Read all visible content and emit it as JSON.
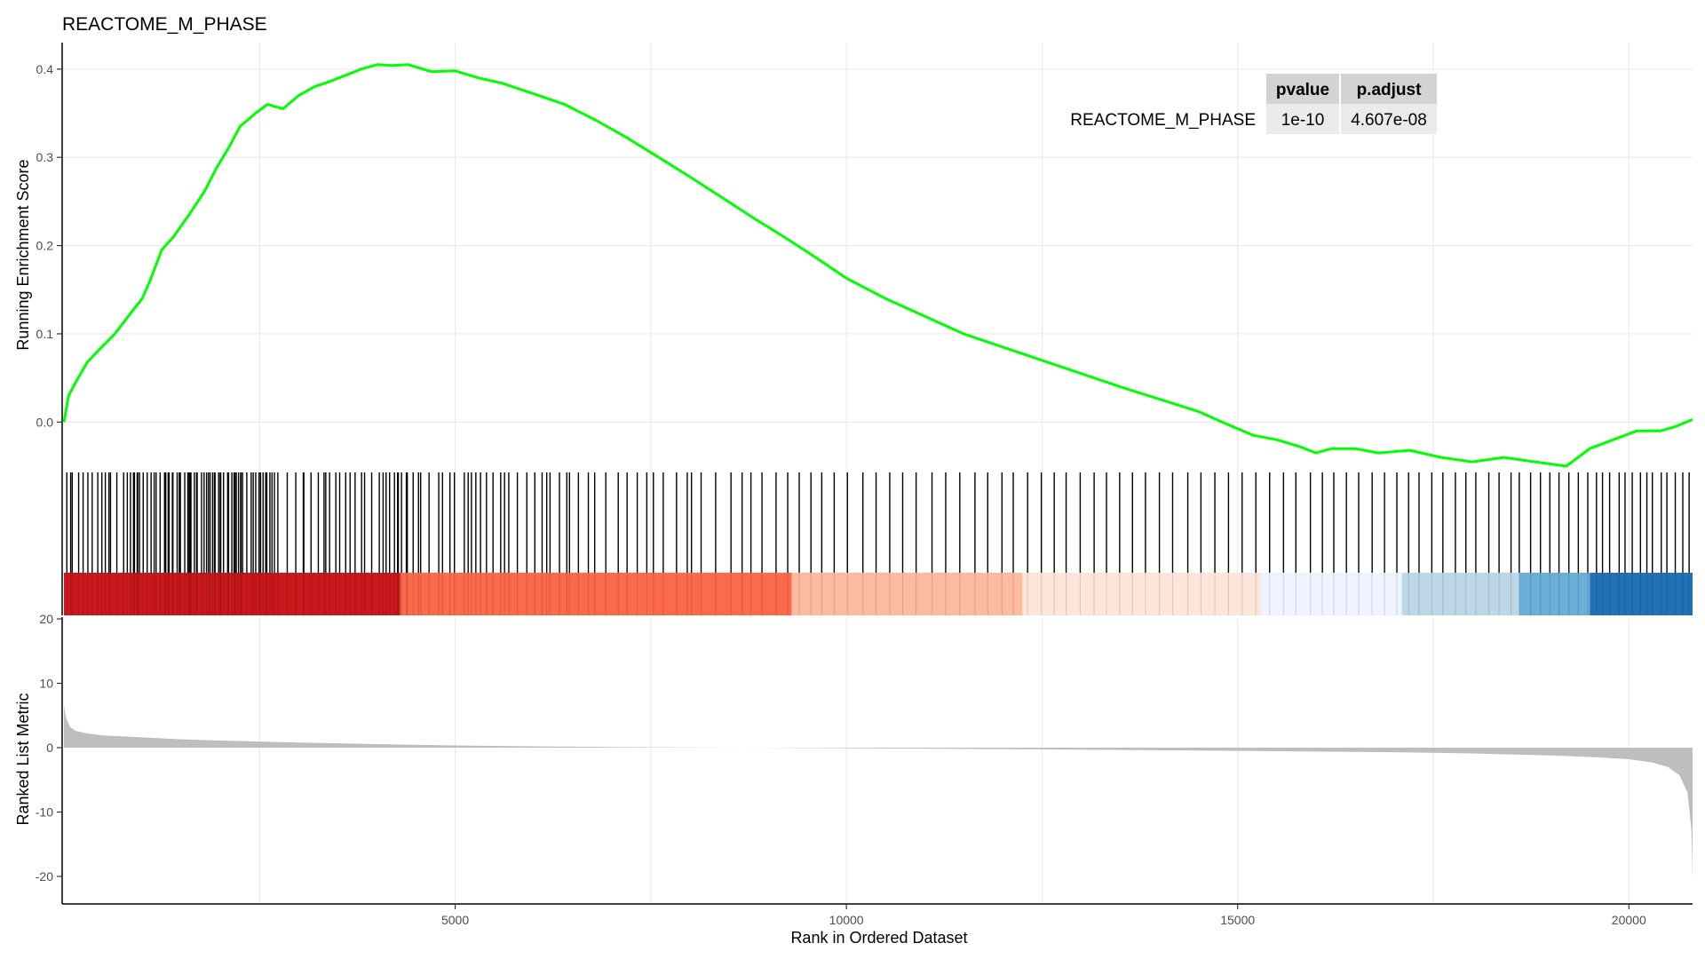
{
  "title": "REACTOME_M_PHASE",
  "table": {
    "headers": [
      "pvalue",
      "p.adjust"
    ],
    "row_label": "REACTOME_M_PHASE",
    "row_label_color": "#00ff00",
    "values": [
      "1e-10",
      "4.607e-08"
    ]
  },
  "chart_data": {
    "type": "line",
    "x_range": [
      0,
      20814
    ],
    "x_ticks": [
      5000,
      10000,
      15000,
      20000
    ],
    "x_tick_labels": [
      "5000",
      "10000",
      "15000",
      "20000"
    ],
    "xlabel": "Rank in Ordered Dataset",
    "running_es": {
      "ylabel": "Running Enrichment Score",
      "ylim": [
        -0.055,
        0.43
      ],
      "y_ticks": [
        0.0,
        0.1,
        0.2,
        0.3,
        0.4
      ],
      "y_tick_labels": [
        "0.0",
        "0.1",
        "0.2",
        "0.3",
        "0.4"
      ],
      "color": "#00ff00",
      "series": [
        {
          "x": [
            0,
            60,
            150,
            300,
            450,
            650,
            850,
            1000,
            1100,
            1250,
            1400,
            1600,
            1800,
            1950,
            2100,
            2250,
            2450,
            2600,
            2800,
            3000,
            3200,
            3400,
            3600,
            3800,
            4000,
            4200,
            4400,
            4700,
            5000,
            5300,
            5600,
            6000,
            6400,
            6800,
            7200,
            7600,
            8000,
            8400,
            8800,
            9200,
            9600,
            10000,
            10500,
            11000,
            11500,
            12000,
            12500,
            13000,
            13500,
            14000,
            14500,
            14800,
            15200,
            15500,
            15800,
            16000,
            16200,
            16500,
            16800,
            17200,
            17600,
            18000,
            18400,
            18800,
            19200,
            19500,
            19800,
            20100,
            20400,
            20600,
            20814
          ],
          "y": [
            0.0,
            0.03,
            0.045,
            0.068,
            0.082,
            0.1,
            0.123,
            0.14,
            0.16,
            0.195,
            0.21,
            0.235,
            0.262,
            0.288,
            0.31,
            0.335,
            0.35,
            0.36,
            0.355,
            0.37,
            0.38,
            0.386,
            0.393,
            0.4,
            0.405,
            0.404,
            0.405,
            0.397,
            0.398,
            0.39,
            0.384,
            0.372,
            0.36,
            0.342,
            0.322,
            0.3,
            0.278,
            0.255,
            0.232,
            0.21,
            0.187,
            0.163,
            0.14,
            0.12,
            0.1,
            0.085,
            0.07,
            0.055,
            0.04,
            0.026,
            0.012,
            0.0,
            -0.015,
            -0.02,
            -0.028,
            -0.035,
            -0.03,
            -0.03,
            -0.035,
            -0.032,
            -0.04,
            -0.045,
            -0.04,
            -0.045,
            -0.05,
            -0.03,
            -0.02,
            -0.01,
            -0.01,
            -0.005,
            0.003
          ]
        }
      ]
    },
    "gene_hits": {
      "color": "#000000",
      "x": [
        37,
        86,
        106,
        188,
        245,
        306,
        361,
        433,
        485,
        529,
        575,
        595,
        676,
        763,
        810,
        850,
        889,
        901,
        936,
        943,
        966,
        1013,
        1064,
        1114,
        1153,
        1178,
        1229,
        1286,
        1301,
        1332,
        1344,
        1386,
        1393,
        1447,
        1474,
        1488,
        1544,
        1583,
        1599,
        1614,
        1623,
        1667,
        1695,
        1703,
        1759,
        1791,
        1823,
        1847,
        1868,
        1900,
        1923,
        1931,
        1977,
        1997,
        2004,
        2040,
        2092,
        2104,
        2146,
        2174,
        2186,
        2202,
        2231,
        2258,
        2263,
        2283,
        2337,
        2393,
        2419,
        2451,
        2494,
        2513,
        2545,
        2578,
        2593,
        2632,
        2659,
        2690,
        2734,
        2854,
        2963,
        3059,
        3066,
        3158,
        3251,
        3324,
        3346,
        3395,
        3475,
        3524,
        3601,
        3657,
        3721,
        3804,
        3842,
        3933,
        4030,
        4079,
        4117,
        4162,
        4224,
        4264,
        4273,
        4314,
        4376,
        4388,
        4463,
        4531,
        4559,
        4666,
        4790,
        4838,
        4933,
        4990,
        5117,
        5166,
        5208,
        5264,
        5324,
        5400,
        5484,
        5582,
        5631,
        5685,
        5795,
        5916,
        6018,
        6111,
        6170,
        6212,
        6333,
        6427,
        6461,
        6575,
        6702,
        6783,
        6925,
        7084,
        7197,
        7327,
        7449,
        7533,
        7659,
        7829,
        7966,
        8020,
        8143,
        8329,
        8525,
        8667,
        8780,
        8921,
        9101,
        9250,
        9397,
        9547,
        9685,
        9844,
        10013,
        10211,
        10379,
        10554,
        10719,
        10891,
        11094,
        11269,
        11449,
        11643,
        11806,
        11988,
        12132,
        12316,
        12491,
        12656,
        12808,
        12988,
        13166,
        13324,
        13492,
        13656,
        13822,
        14000,
        14169,
        14363,
        14531,
        14709,
        14883,
        15057,
        15233,
        15409,
        15586,
        15744,
        15930,
        16083,
        16229,
        16390,
        16547,
        16719,
        16877,
        17035,
        17185,
        17318,
        17481,
        17623,
        17783,
        17917,
        18044,
        18210,
        18341,
        18494,
        18599,
        18744,
        18870,
        18990,
        19107,
        19233,
        19354,
        19475,
        19586,
        19663,
        19754,
        19876,
        19951,
        20043,
        20148,
        20230,
        20300,
        20414,
        20486,
        20593,
        20689,
        20770
      ]
    },
    "heat_bands": [
      {
        "x0": 0,
        "x1": 4300,
        "color": "#cb181d"
      },
      {
        "x0": 4300,
        "x1": 9300,
        "color": "#fb6a4a"
      },
      {
        "x0": 9300,
        "x1": 12250,
        "color": "#fcbba1"
      },
      {
        "x0": 12250,
        "x1": 15300,
        "color": "#fee5d9"
      },
      {
        "x0": 15300,
        "x1": 17100,
        "color": "#eff3ff"
      },
      {
        "x0": 17100,
        "x1": 18600,
        "color": "#bdd7e7"
      },
      {
        "x0": 18600,
        "x1": 19500,
        "color": "#6baed6"
      },
      {
        "x0": 19500,
        "x1": 20814,
        "color": "#2171b5"
      }
    ],
    "ranked_metric": {
      "ylabel": "Ranked List Metric",
      "ylim": [
        -24,
        20
      ],
      "y_ticks": [
        20,
        10,
        0,
        -10,
        -20
      ],
      "y_tick_labels": [
        "20",
        "10",
        "0",
        "-10",
        "-20"
      ],
      "fill_color": "#bebebe",
      "x": [
        0,
        30,
        80,
        150,
        300,
        500,
        1000,
        1500,
        2000,
        3000,
        4000,
        5000,
        6000,
        7000,
        8000,
        9000,
        10000,
        11000,
        12000,
        13000,
        14000,
        15000,
        16000,
        17000,
        18000,
        19000,
        19600,
        20000,
        20300,
        20500,
        20650,
        20750,
        20800,
        20814
      ],
      "y": [
        6.5,
        4.5,
        3.2,
        2.6,
        2.2,
        1.9,
        1.6,
        1.3,
        1.1,
        0.8,
        0.55,
        0.35,
        0.2,
        0.1,
        0.03,
        -0.02,
        -0.08,
        -0.15,
        -0.22,
        -0.3,
        -0.4,
        -0.5,
        -0.6,
        -0.7,
        -0.9,
        -1.2,
        -1.5,
        -1.8,
        -2.3,
        -3.0,
        -4.3,
        -7.0,
        -13.0,
        -20.5
      ]
    }
  }
}
